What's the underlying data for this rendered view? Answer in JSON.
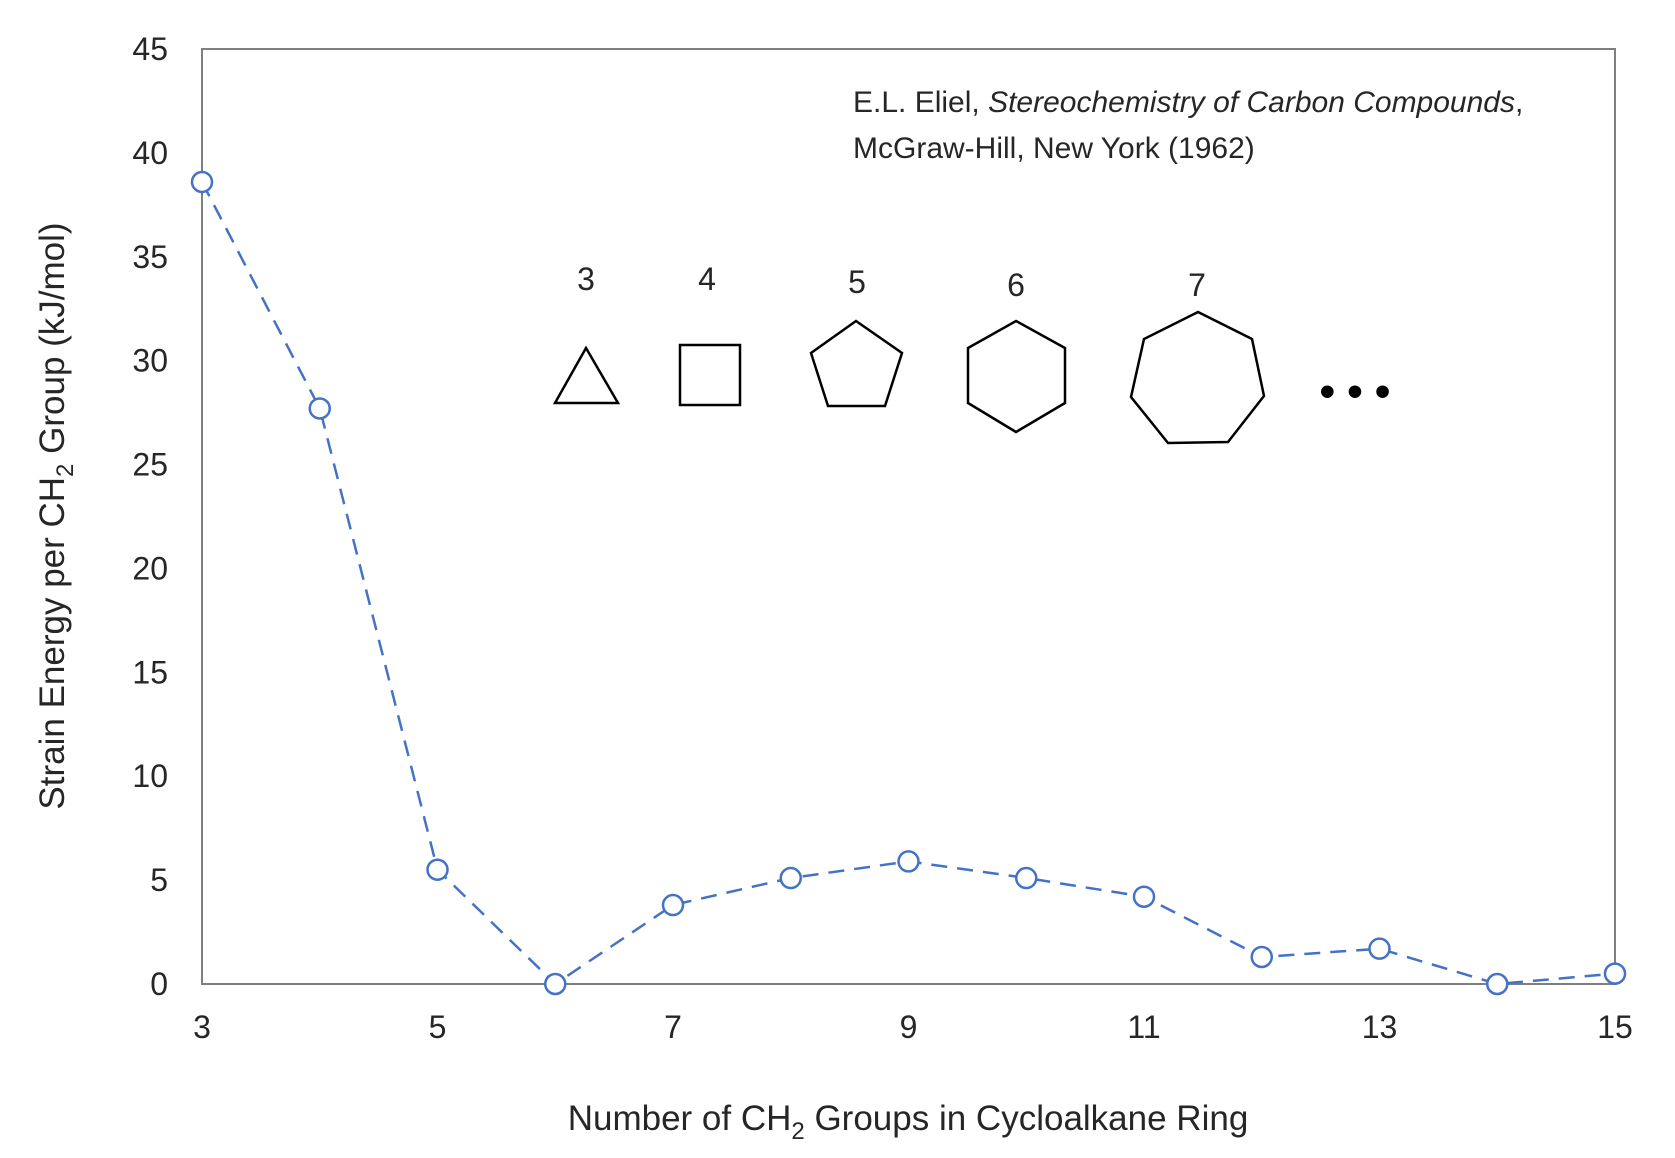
{
  "chart_data": {
    "type": "scatter",
    "line_style": "dashed",
    "marker": "open-circle",
    "series_color": "#4472C4",
    "grid": false,
    "xlabel": {
      "prefix": "Number of CH",
      "sub": "2",
      "suffix": " Groups in Cycloalkane Ring"
    },
    "ylabel": {
      "prefix": "Strain Energy per CH",
      "sub": "2",
      "suffix": " Group (kJ/mol)"
    },
    "xlim": [
      3,
      15
    ],
    "ylim": [
      0,
      45
    ],
    "x_ticks": [
      "3",
      "5",
      "7",
      "9",
      "11",
      "13",
      "15"
    ],
    "y_ticks": [
      "0",
      "5",
      "10",
      "15",
      "20",
      "25",
      "30",
      "35",
      "40",
      "45"
    ],
    "series": [
      {
        "x": [
          3,
          4,
          5,
          6,
          7,
          8,
          9,
          10,
          11,
          12,
          13,
          14,
          15
        ],
        "y": [
          38.6,
          27.7,
          5.5,
          0.0,
          3.8,
          5.1,
          5.9,
          5.1,
          4.2,
          1.3,
          1.7,
          0.0,
          0.5
        ]
      }
    ],
    "annotation": {
      "line1_prefix": "E.L. Eliel, ",
      "line1_italic": "Stereochemistry of Carbon Compounds",
      "line1_suffix": ",",
      "line2": "McGraw-Hill, New York (1962)"
    },
    "ring_icons": [
      {
        "label": "3",
        "shape": "triangle-icon"
      },
      {
        "label": "4",
        "shape": "square-icon"
      },
      {
        "label": "5",
        "shape": "pentagon-icon"
      },
      {
        "label": "6",
        "shape": "hexagon-icon"
      },
      {
        "label": "7",
        "shape": "heptagon-icon"
      }
    ],
    "ellipsis": "• • •"
  }
}
